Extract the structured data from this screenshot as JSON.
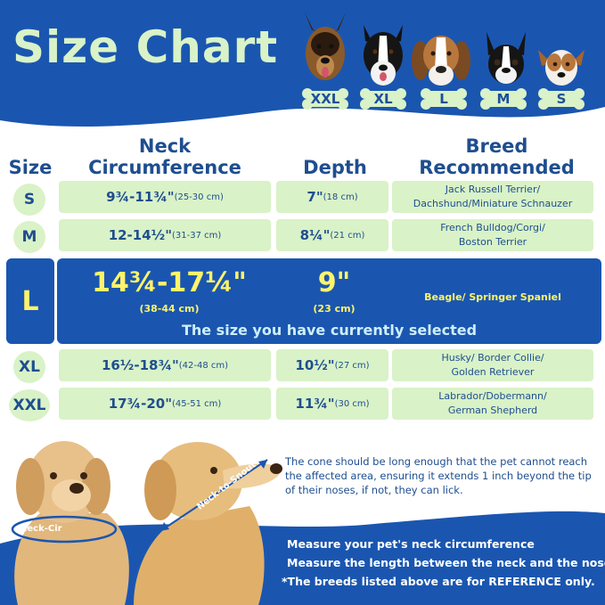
{
  "header": {
    "title": "Size Chart",
    "dogs": [
      {
        "size": "XXL",
        "breed_icon": "german-shepherd-icon"
      },
      {
        "size": "XL",
        "breed_icon": "border-collie-icon"
      },
      {
        "size": "L",
        "breed_icon": "beagle-icon"
      },
      {
        "size": "M",
        "breed_icon": "boston-terrier-icon"
      },
      {
        "size": "S",
        "breed_icon": "jack-russell-icon"
      }
    ]
  },
  "table": {
    "headers": {
      "size": "Size",
      "neck_line1": "Neck",
      "neck_line2": "Circumference",
      "depth": "Depth",
      "breed_line1": "Breed",
      "breed_line2": "Recommended"
    },
    "rows": [
      {
        "size": "S",
        "neck": "9¾-11¾\"",
        "neck_cm": "(25-30 cm)",
        "depth": "7\"",
        "depth_cm": "(18 cm)",
        "breed_line1": "Jack Russell Terrier/",
        "breed_line2": "Dachshund/Miniature Schnauzer"
      },
      {
        "size": "M",
        "neck": "12-14½\"",
        "neck_cm": "(31-37 cm)",
        "depth": "8¼\"",
        "depth_cm": "(21 cm)",
        "breed_line1": "French Bulldog/Corgi/",
        "breed_line2": "Boston Terrier"
      },
      {
        "size": "XL",
        "neck": "16½-18¾\"",
        "neck_cm": "(42-48 cm)",
        "depth": "10½\"",
        "depth_cm": "(27 cm)",
        "breed_line1": "Husky/ Border Collie/",
        "breed_line2": "Golden Retriever"
      },
      {
        "size": "XXL",
        "neck": "17¾-20\"",
        "neck_cm": "(45-51 cm)",
        "depth": "11¾\"",
        "depth_cm": "(30 cm)",
        "breed_line1": "Labrador/Dobermann/",
        "breed_line2": "German Shepherd"
      }
    ],
    "selected": {
      "size": "L",
      "neck": "14¾-17¼\"",
      "neck_cm": "(38-44 cm)",
      "depth": "9\"",
      "depth_cm": "(23 cm)",
      "breed": "Beagle/ Springer Spaniel",
      "note": "The size you have currently selected"
    }
  },
  "measure": {
    "neck_label": "Neck-Cir",
    "snout_label": "Neck-to-Snout",
    "cone_text": "The cone should be long enough that the pet cannot reach the affected area, ensuring it extends 1 inch beyond the tip of their noses, if not, they can lick."
  },
  "footer": {
    "line1": "Measure your pet's neck circumference",
    "line2": "Measure the length between the neck and the nose",
    "line3": "*The breeds listed above are for REFERENCE only."
  },
  "colors": {
    "brand_blue": "#1a56b0",
    "mint": "#d9f2c7",
    "text_blue": "#1e4e8f",
    "highlight_yellow": "#fff36a"
  }
}
